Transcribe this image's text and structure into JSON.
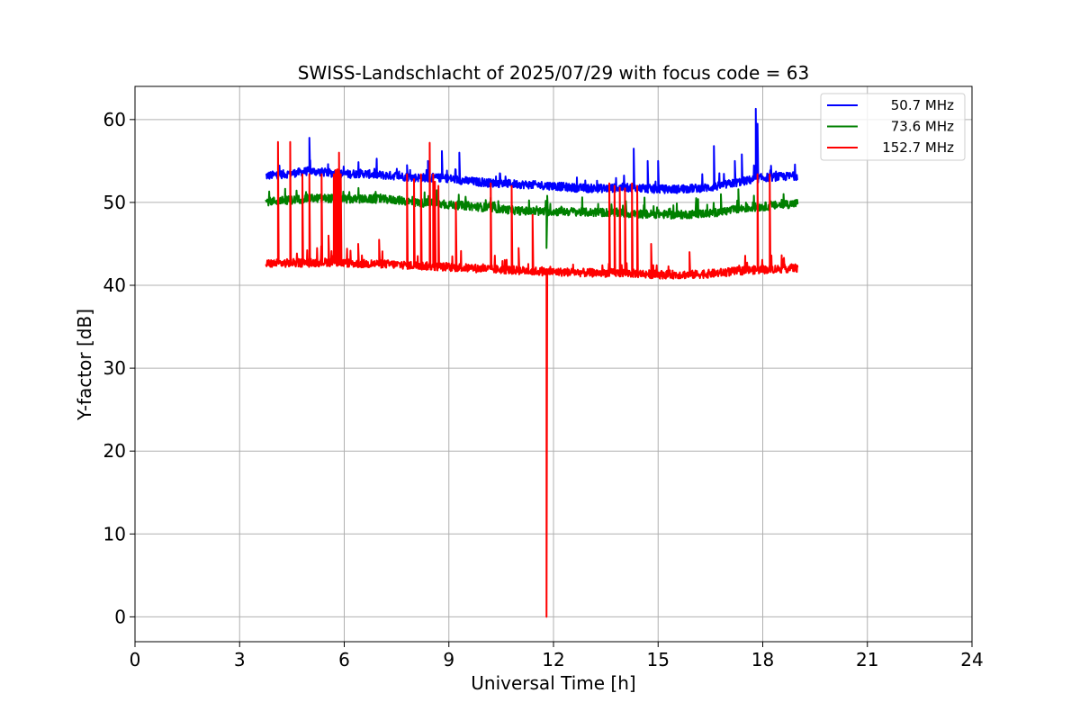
{
  "chart_data": {
    "type": "line",
    "title": "SWISS-Landschlacht of 2025/07/29 with focus code = 63",
    "xlabel": "Universal Time [h]",
    "ylabel": "Y-factor [dB]",
    "xlim": [
      0,
      24
    ],
    "ylim": [
      -3,
      64
    ],
    "xticks": [
      0,
      3,
      6,
      9,
      12,
      15,
      18,
      21,
      24
    ],
    "yticks": [
      0,
      10,
      20,
      30,
      40,
      50,
      60
    ],
    "grid": true,
    "legend_position": "top-right",
    "series": [
      {
        "name": "50.7 MHz",
        "color": "#0000ff",
        "x": [
          3.75,
          4.5,
          5.0,
          5.5,
          6.0,
          6.5,
          7.0,
          7.5,
          8.0,
          8.5,
          9.0,
          9.5,
          10.0,
          10.5,
          11.0,
          11.5,
          12.0,
          12.5,
          13.0,
          13.5,
          14.0,
          14.5,
          15.0,
          15.5,
          16.0,
          16.5,
          17.0,
          17.5,
          18.0,
          18.5,
          19.0
        ],
        "y": [
          53.2,
          53.5,
          53.8,
          53.6,
          53.4,
          53.5,
          53.3,
          53.2,
          53.0,
          53.0,
          52.9,
          52.6,
          52.4,
          52.3,
          52.2,
          52.1,
          52.0,
          51.8,
          51.7,
          51.7,
          51.8,
          51.7,
          51.6,
          51.6,
          51.7,
          51.8,
          52.2,
          52.6,
          53.0,
          53.1,
          53.2
        ],
        "spikes": [
          [
            5.0,
            57.8
          ],
          [
            7.8,
            54.5
          ],
          [
            8.4,
            55.0
          ],
          [
            8.8,
            56.2
          ],
          [
            9.3,
            56.0
          ],
          [
            14.3,
            56.5
          ],
          [
            14.7,
            55.0
          ],
          [
            15.0,
            55.0
          ],
          [
            16.6,
            56.8
          ],
          [
            17.2,
            55.0
          ],
          [
            17.4,
            55.8
          ],
          [
            17.8,
            61.3
          ],
          [
            17.85,
            59.5
          ]
        ]
      },
      {
        "name": "73.6 MHz",
        "color": "#008000",
        "x": [
          3.75,
          4.5,
          5.0,
          5.5,
          6.0,
          6.5,
          7.0,
          7.5,
          8.0,
          8.5,
          9.0,
          9.5,
          10.0,
          10.5,
          11.0,
          11.5,
          12.0,
          12.5,
          13.0,
          13.5,
          14.0,
          14.5,
          15.0,
          15.5,
          16.0,
          16.5,
          17.0,
          17.5,
          18.0,
          18.5,
          19.0
        ],
        "y": [
          50.1,
          50.3,
          50.5,
          50.5,
          50.4,
          50.4,
          50.4,
          50.3,
          50.0,
          49.9,
          49.7,
          49.6,
          49.4,
          49.2,
          49.0,
          48.9,
          48.9,
          48.9,
          48.8,
          48.8,
          48.7,
          48.6,
          48.6,
          48.5,
          48.6,
          48.7,
          49.0,
          49.3,
          49.5,
          49.7,
          49.9
        ],
        "spikes": [
          [
            11.8,
            44.5
          ],
          [
            11.82,
            50.8
          ],
          [
            6.9,
            51.3
          ],
          [
            17.3,
            51.6
          ],
          [
            16.8,
            51.0
          ]
        ]
      },
      {
        "name": "152.7 MHz",
        "color": "#ff0000",
        "x": [
          3.75,
          4.5,
          5.0,
          5.5,
          6.0,
          6.5,
          7.0,
          7.5,
          8.0,
          8.5,
          9.0,
          9.5,
          10.0,
          10.5,
          11.0,
          11.5,
          12.0,
          12.5,
          13.0,
          13.5,
          14.0,
          14.5,
          15.0,
          15.5,
          16.0,
          16.5,
          17.0,
          17.5,
          18.0,
          18.5,
          19.0
        ],
        "y": [
          42.6,
          42.7,
          42.7,
          42.8,
          42.7,
          42.6,
          42.6,
          42.5,
          42.4,
          42.3,
          42.2,
          42.1,
          42.0,
          41.9,
          41.8,
          41.7,
          41.6,
          41.6,
          41.5,
          41.5,
          41.5,
          41.4,
          41.3,
          41.3,
          41.3,
          41.4,
          41.6,
          41.8,
          41.9,
          42.0,
          42.1
        ],
        "spikes": [
          [
            4.1,
            57.3
          ],
          [
            4.45,
            57.3
          ],
          [
            4.8,
            53.4
          ],
          [
            5.0,
            53.4
          ],
          [
            5.35,
            53.4
          ],
          [
            5.55,
            46.0
          ],
          [
            5.7,
            53.4
          ],
          [
            5.75,
            53.9
          ],
          [
            5.8,
            54.0
          ],
          [
            5.85,
            56.0
          ],
          [
            5.9,
            53.4
          ],
          [
            6.4,
            45.0
          ],
          [
            7.0,
            45.5
          ],
          [
            7.8,
            53.4
          ],
          [
            8.0,
            52.8
          ],
          [
            8.2,
            53.4
          ],
          [
            8.45,
            57.2
          ],
          [
            8.55,
            53.4
          ],
          [
            8.6,
            52.5
          ],
          [
            8.7,
            52.0
          ],
          [
            9.2,
            50.0
          ],
          [
            10.2,
            52.3
          ],
          [
            10.8,
            52.0
          ],
          [
            11.0,
            44.5
          ],
          [
            11.4,
            48.5
          ],
          [
            11.8,
            0.0
          ],
          [
            13.6,
            52.3
          ],
          [
            13.75,
            52.0
          ],
          [
            13.9,
            51.8
          ],
          [
            14.05,
            51.7
          ],
          [
            14.25,
            52.3
          ],
          [
            14.4,
            52.0
          ],
          [
            14.8,
            45.0
          ],
          [
            15.9,
            44.0
          ],
          [
            17.85,
            53.4
          ],
          [
            18.2,
            53.4
          ]
        ]
      }
    ]
  }
}
